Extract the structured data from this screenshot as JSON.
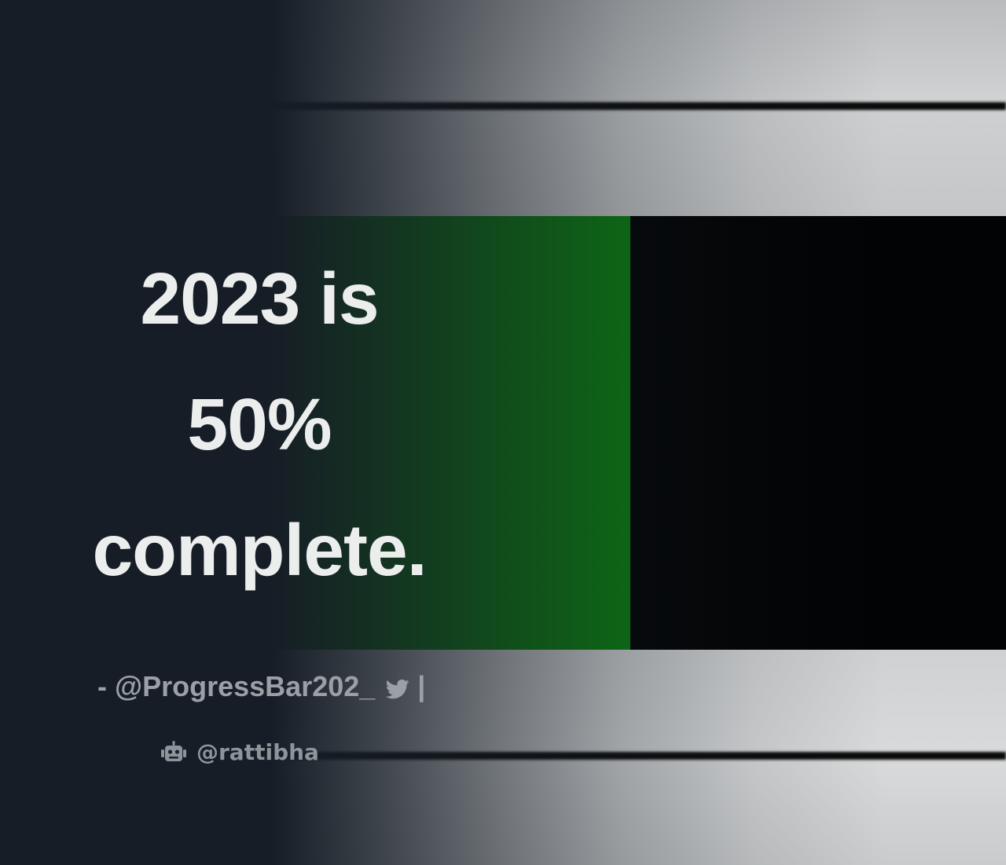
{
  "quote": {
    "lines": [
      "2023 is",
      "50%",
      "complete."
    ]
  },
  "attribution": {
    "prefix": "- @ProgressBar202_",
    "separator": "|",
    "icon": "twitter-bird-icon"
  },
  "watermark": {
    "handle": "@rattibha",
    "icon": "robot-icon"
  },
  "progress": {
    "fraction": 0.5
  },
  "colors": {
    "background": "#161d26",
    "text": "#eceded",
    "muted_text": "#9aa0a6",
    "progress_fill": "#0b7f10",
    "progress_track": "#020304"
  }
}
